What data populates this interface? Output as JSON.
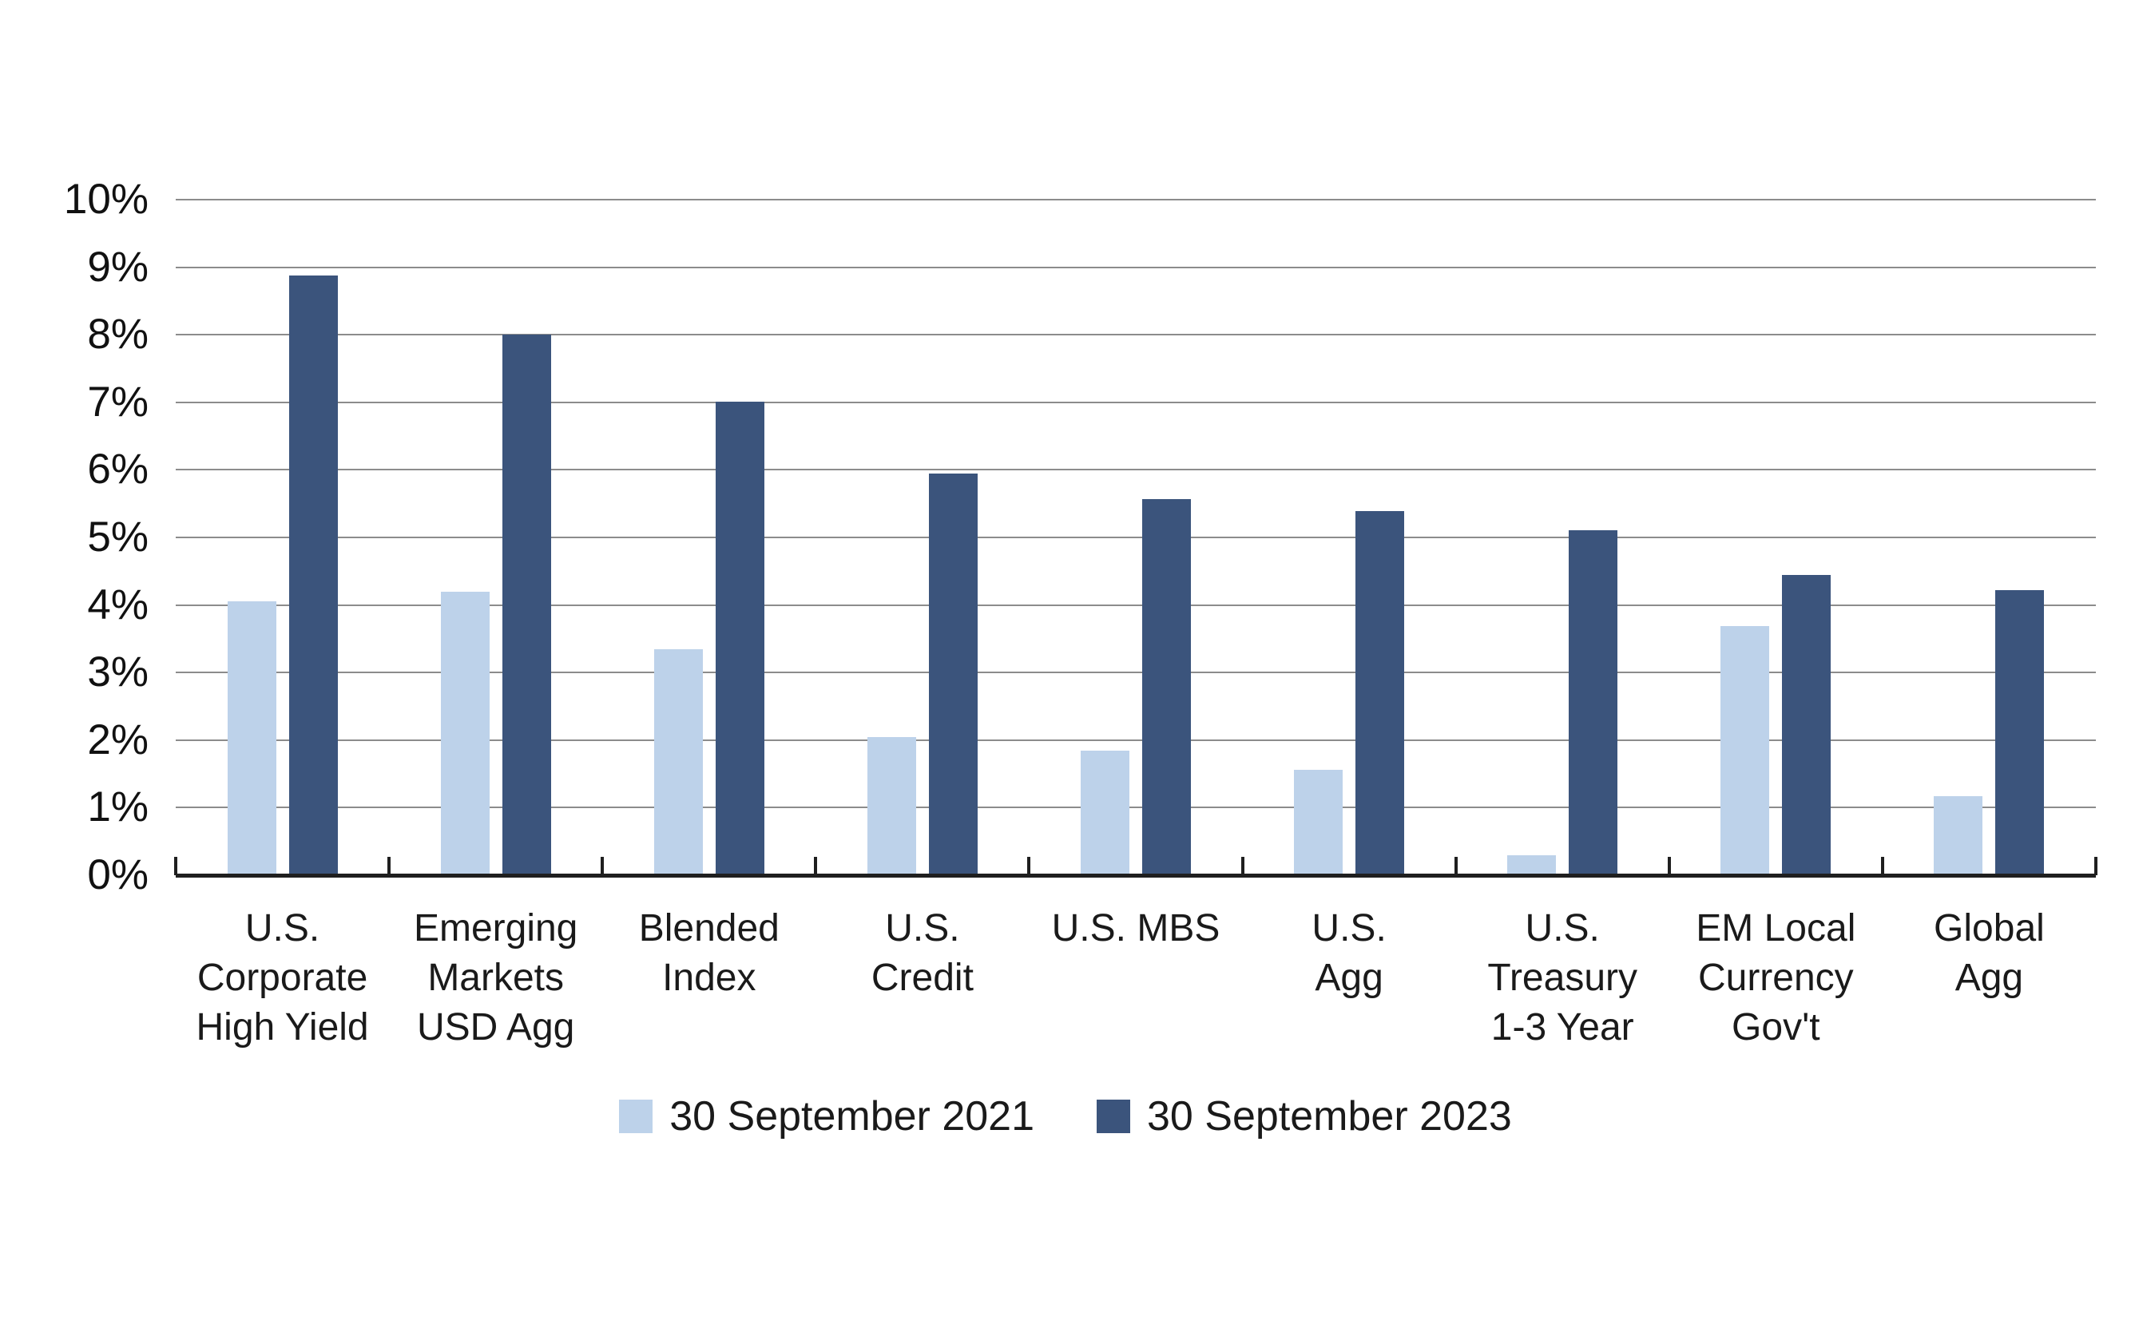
{
  "chart_data": {
    "type": "bar",
    "title": "",
    "categories": [
      "U.S. Corporate High Yield",
      "Emerging Markets USD Agg",
      "Blended Index",
      "U.S. Credit",
      "U.S. MBS",
      "U.S. Agg",
      "U.S. Treasury 1-3 Year",
      "EM Local Currency Gov't",
      "Global Agg"
    ],
    "category_lines": [
      [
        "U.S.",
        "Corporate",
        "High Yield"
      ],
      [
        "Emerging",
        "Markets",
        "USD Agg"
      ],
      [
        "Blended",
        "Index"
      ],
      [
        "U.S.",
        "Credit"
      ],
      [
        "U.S. MBS"
      ],
      [
        "U.S.",
        "Agg"
      ],
      [
        "U.S.",
        "Treasury",
        "1-3 Year"
      ],
      [
        "EM Local",
        "Currency",
        "Gov't"
      ],
      [
        "Global",
        "Agg"
      ]
    ],
    "series": [
      {
        "name": "30 September 2021",
        "color": "#BDD2EA",
        "values": [
          4.05,
          4.2,
          3.35,
          2.05,
          1.84,
          1.56,
          0.3,
          3.69,
          1.17
        ]
      },
      {
        "name": "30 September 2023",
        "color": "#3B547C",
        "values": [
          8.88,
          8.0,
          7.01,
          5.95,
          5.57,
          5.39,
          5.11,
          4.45,
          4.22
        ]
      }
    ],
    "xlabel": "",
    "ylabel": "",
    "ylim": [
      0,
      10
    ],
    "ytick_interval": 1,
    "ytick_labels": [
      "0%",
      "1%",
      "2%",
      "3%",
      "4%",
      "5%",
      "6%",
      "7%",
      "8%",
      "9%",
      "10%"
    ],
    "grid": "horizontal",
    "legend_position": "bottom-center"
  },
  "colors": {
    "background": "#FFFFFF",
    "gridline": "#8C8C8C",
    "axis_line": "#1F1F1F",
    "text": "#1A1A1A",
    "series_2021": "#BDD2EA",
    "series_2023": "#3B547C"
  }
}
